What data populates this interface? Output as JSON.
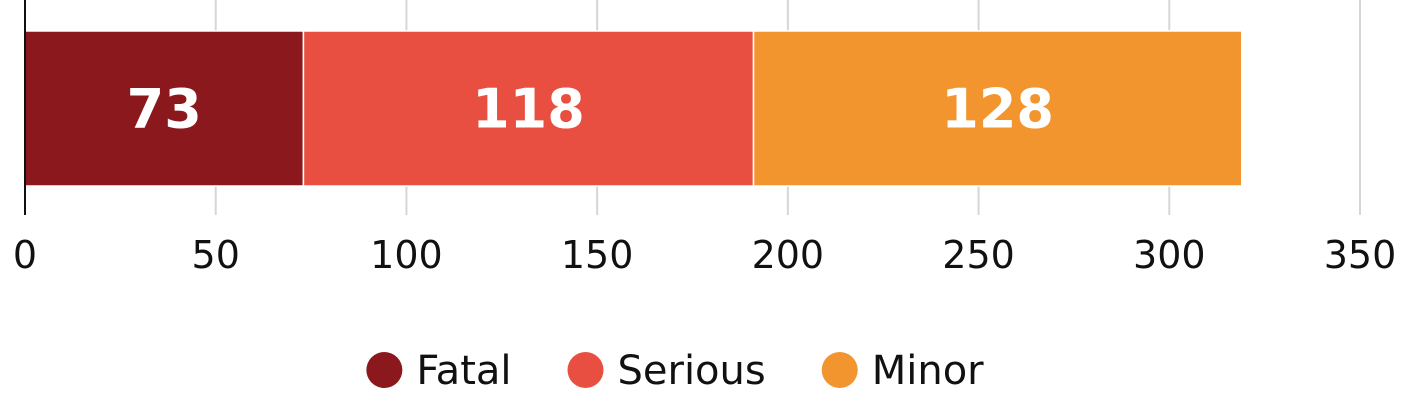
{
  "chart_data": {
    "type": "bar",
    "orientation": "horizontal",
    "stacked": true,
    "title": "",
    "xlabel": "",
    "ylabel": "",
    "xlim": [
      0,
      350
    ],
    "x_ticks": [
      0,
      50,
      100,
      150,
      200,
      250,
      300,
      350
    ],
    "x_tick_labels": [
      "0",
      "50",
      "100",
      "150",
      "200",
      "250",
      "300",
      "350"
    ],
    "grid": true,
    "legend_position": "bottom-center",
    "categories": [
      ""
    ],
    "series": [
      {
        "name": "Fatal",
        "values": [
          73
        ],
        "color": "#8b181c",
        "label": "73"
      },
      {
        "name": "Serious",
        "values": [
          118
        ],
        "color": "#e84f40",
        "label": "118"
      },
      {
        "name": "Minor",
        "values": [
          128
        ],
        "color": "#f2952f",
        "label": "128"
      }
    ]
  }
}
